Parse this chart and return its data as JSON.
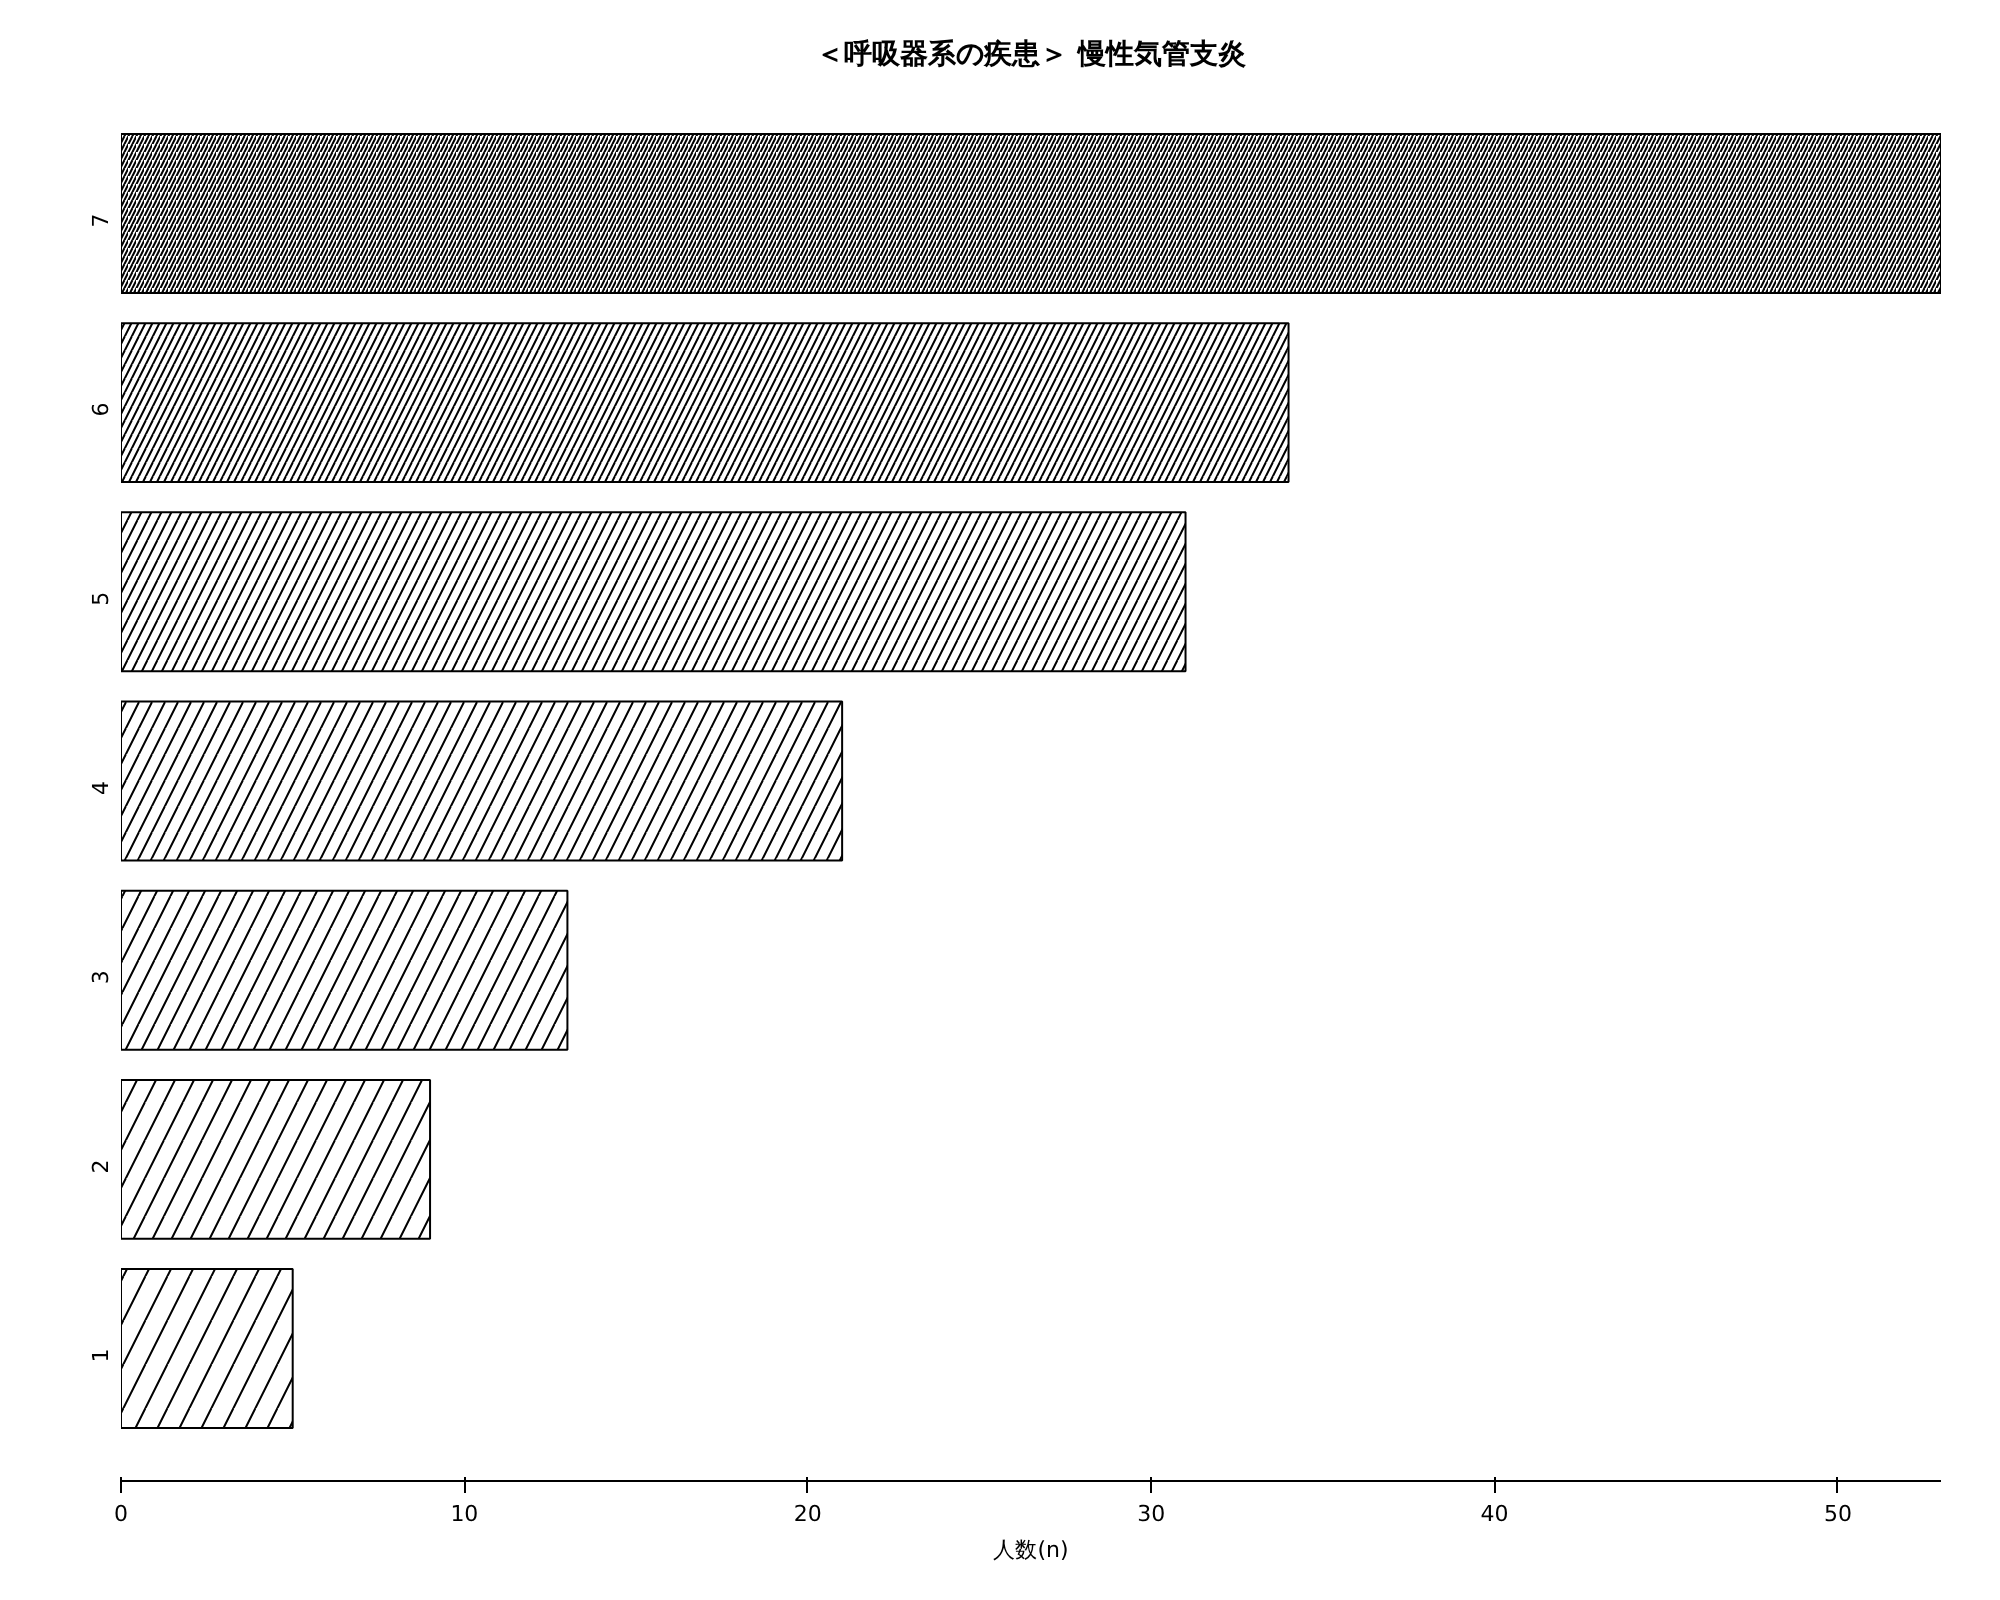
{
  "chart_data": {
    "type": "bar",
    "orientation": "horizontal",
    "title": "＜呼吸器系の疾患＞ 慢性気管支炎",
    "xlabel": "人数(n)",
    "categories": [
      "7",
      "6",
      "5",
      "4",
      "3",
      "2",
      "1"
    ],
    "values": [
      53,
      34,
      31,
      21,
      13,
      9,
      5
    ],
    "color": "#000000",
    "xlim": [
      0,
      53
    ],
    "xticks": [
      0,
      10,
      20,
      30,
      40,
      50
    ],
    "grid": false
  }
}
